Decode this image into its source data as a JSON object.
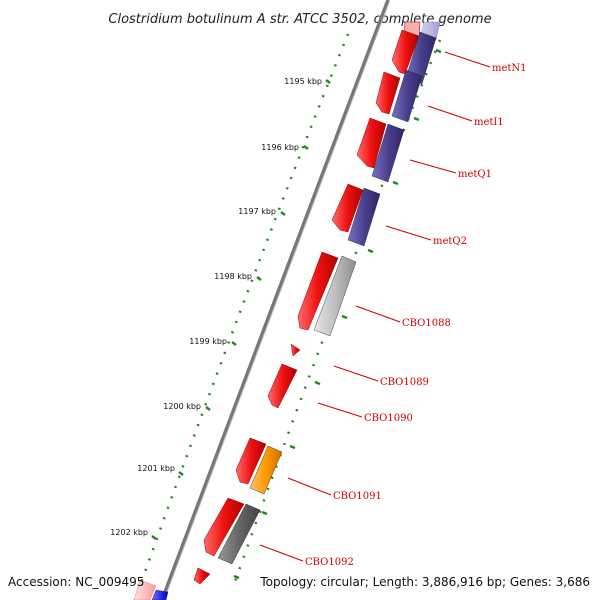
{
  "title": "Clostridium botulinum A str. ATCC 3502, complete genome",
  "footer": {
    "accession": "Accession: NC_009495",
    "summary": "Topology: circular; Length: 3,886,916 bp; Genes: 3,686"
  },
  "ticks": [
    "1195 kbp",
    "1196 kbp",
    "1197 kbp",
    "1198 kbp",
    "1199 kbp",
    "1200 kbp",
    "1201 kbp",
    "1202 kbp"
  ],
  "gene_labels": [
    "metN1",
    "metI1",
    "metQ1",
    "metQ2",
    "CBO1088",
    "CBO1089",
    "CBO1090",
    "CBO1091",
    "CBO1092"
  ],
  "colors": {
    "forward_gene": "#ee1111",
    "cog_purple": "#4a3f8f",
    "cog_gray": "#bfbfbf",
    "cog_dark_gray": "#666666",
    "cog_orange": "#ff9900",
    "cog_blue": "#1a1aff",
    "backbone": "#777777",
    "gc_track": "#228822",
    "label_line": "#cc0000"
  }
}
